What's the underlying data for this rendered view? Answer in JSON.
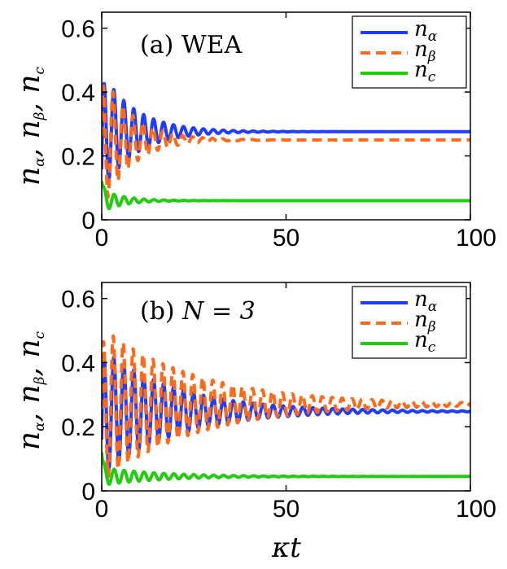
{
  "colors": {
    "alpha": "#1f3cff",
    "beta": "#ff6a1a",
    "c": "#22cc11"
  },
  "chart_data": [
    {
      "type": "line",
      "title": "(a) WEA",
      "ylabel": "n_α, n_β, n_c",
      "xlabel": "",
      "xlim": [
        0,
        100
      ],
      "ylim": [
        0,
        0.65
      ],
      "xticks": [
        0,
        50,
        100
      ],
      "xtick_labels": [
        "0",
        "50",
        "100"
      ],
      "yticks": [
        0,
        0.2,
        0.4,
        0.6
      ],
      "ytick_labels": [
        "0",
        "0.2",
        "0.4",
        "0.6"
      ],
      "legend_position": "top-right",
      "series": [
        {
          "name": "n_α",
          "sym": "n",
          "sub": "α",
          "style": "solid",
          "color_key": "alpha",
          "steady": 0.276,
          "start": 0.12,
          "amp": 0.19,
          "decay": 9.0,
          "period": 2.7,
          "phase": 0.2
        },
        {
          "name": "n_β",
          "sym": "n",
          "sub": "β",
          "style": "dashed",
          "color_key": "beta",
          "steady": 0.25,
          "start": 0.12,
          "amp": 0.22,
          "decay": 8.0,
          "period": 2.7,
          "phase": 0.7
        },
        {
          "name": "n_c",
          "sym": "n",
          "sub": "c",
          "style": "solid",
          "color_key": "c",
          "steady": 0.06,
          "start": 0.12,
          "amp": 0.035,
          "decay": 6.0,
          "period": 2.7,
          "phase": 0.0
        }
      ]
    },
    {
      "type": "line",
      "title": "(b) N = 3",
      "title_prefix": "(b) ",
      "title_math": "N = 3",
      "ylabel": "n_α, n_β, n_c",
      "xlabel": "κt",
      "xlim": [
        0,
        100
      ],
      "ylim": [
        0,
        0.65
      ],
      "xticks": [
        0,
        50,
        100
      ],
      "xtick_labels": [
        "0",
        "50",
        "100"
      ],
      "yticks": [
        0,
        0.2,
        0.4,
        0.6
      ],
      "ytick_labels": [
        "0",
        "0.2",
        "0.4",
        "0.6"
      ],
      "legend_position": "top-right",
      "series": [
        {
          "name": "n_α",
          "sym": "n",
          "sub": "α",
          "style": "solid",
          "color_key": "alpha",
          "steady": 0.248,
          "start": 0.12,
          "amp": 0.2,
          "decay": 20.0,
          "period": 2.7,
          "phase": 0.2
        },
        {
          "name": "n_β",
          "sym": "n",
          "sub": "β",
          "style": "dashed",
          "color_key": "beta",
          "steady": 0.27,
          "start": 0.12,
          "amp": 0.24,
          "decay": 26.0,
          "period": 2.7,
          "phase": 0.6
        },
        {
          "name": "n_c",
          "sym": "n",
          "sub": "c",
          "style": "solid",
          "color_key": "c",
          "steady": 0.045,
          "start": 0.12,
          "amp": 0.028,
          "decay": 16.0,
          "period": 2.7,
          "phase": 0.0
        }
      ]
    }
  ]
}
